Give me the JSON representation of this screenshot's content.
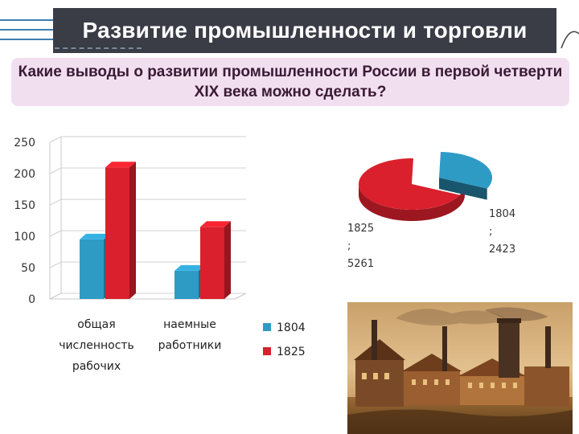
{
  "slide": {
    "title": "Развитие промышленности и торговли",
    "question": "Какие выводы о развитии промышленности России в первой четверти XIX века можно сделать?"
  },
  "colors": {
    "series_1804": "#2e9bc5",
    "series_1825": "#d9202c",
    "title_bg": "#3a3d46",
    "question_bg": "#f1dff0"
  },
  "chart_data": [
    {
      "type": "bar",
      "categories": [
        [
          "общая",
          "численность",
          "рабочих"
        ],
        [
          "наемные",
          "работники"
        ]
      ],
      "series": [
        {
          "name": "1804",
          "values": [
            95,
            45
          ]
        },
        {
          "name": "1825",
          "values": [
            210,
            115
          ]
        }
      ],
      "yticks": [
        "0",
        "50",
        "100",
        "150",
        "200",
        "250"
      ],
      "ylim": [
        0,
        250
      ],
      "legend_position": "right",
      "grid": true
    },
    {
      "type": "pie",
      "slices": [
        {
          "label_lines": [
            "1804",
            ";",
            "2423"
          ],
          "value": 2423
        },
        {
          "label_lines": [
            "1825",
            ";",
            "5261"
          ],
          "value": 5261
        }
      ]
    }
  ]
}
